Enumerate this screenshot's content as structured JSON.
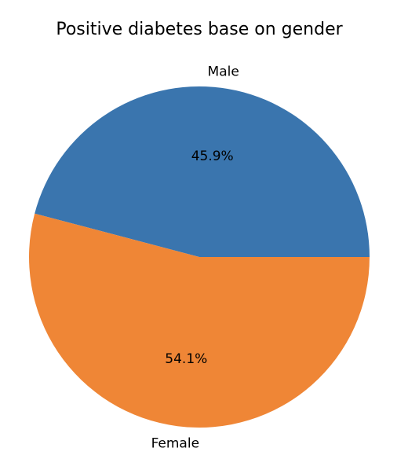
{
  "chart_data": {
    "type": "pie",
    "title": "Positive diabetes base on gender",
    "labels": [
      "Male",
      "Female"
    ],
    "values": [
      45.9,
      54.1
    ],
    "percent_labels": [
      "45.9%",
      "54.1%"
    ],
    "colors": [
      "#3a75ae",
      "#ef8636"
    ],
    "start_angle_deg": 0,
    "direction": "counterclockwise"
  }
}
